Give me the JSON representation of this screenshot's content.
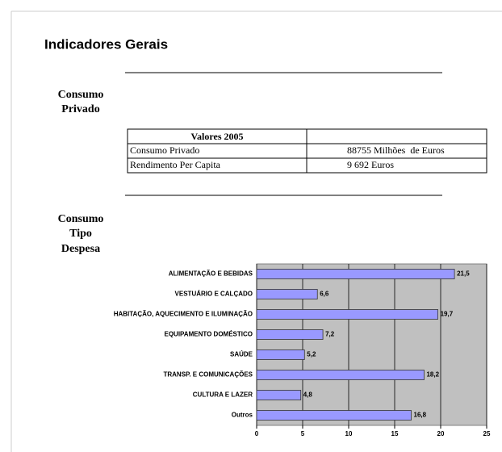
{
  "header": {
    "title": "Indicadores Gerais"
  },
  "sections": [
    {
      "title": [
        "Consumo",
        "Privado"
      ]
    },
    {
      "title": [
        "Consumo",
        "Tipo",
        "Despesa"
      ]
    }
  ],
  "table": {
    "header": [
      "Valores 2005"
    ],
    "rows": [
      [
        "Consumo Privado",
        "88755 Milhões  de Euros"
      ],
      [
        "Rendimento Per Capita",
        "9 692 Euros"
      ]
    ]
  },
  "chart_data": {
    "type": "bar",
    "orientation": "horizontal",
    "categories": [
      "ALIMENTAÇÃO E BEBIDAS",
      "VESTUÁRIO E CALÇADO",
      "HABITAÇÃO, AQUECIMENTO E ILUMINAÇÃO",
      "EQUIPAMENTO DOMÉSTICO",
      "SAÚDE",
      "TRANSP. E COMUNICAÇÕES",
      "CULTURA E LAZER",
      "Outros"
    ],
    "values": [
      21.5,
      6.6,
      19.7,
      7.2,
      5.2,
      18.2,
      4.8,
      16.8
    ],
    "value_labels": [
      "21,5",
      "6,6",
      "19,7",
      "7,2",
      "5,2",
      "18,2",
      "4,8",
      "16,8"
    ],
    "color": "#9999ff",
    "plot_background": "#c0c0c0",
    "xlim": [
      0,
      25
    ],
    "xticks": [
      0,
      5,
      10,
      15,
      20,
      25
    ],
    "grid": true
  }
}
